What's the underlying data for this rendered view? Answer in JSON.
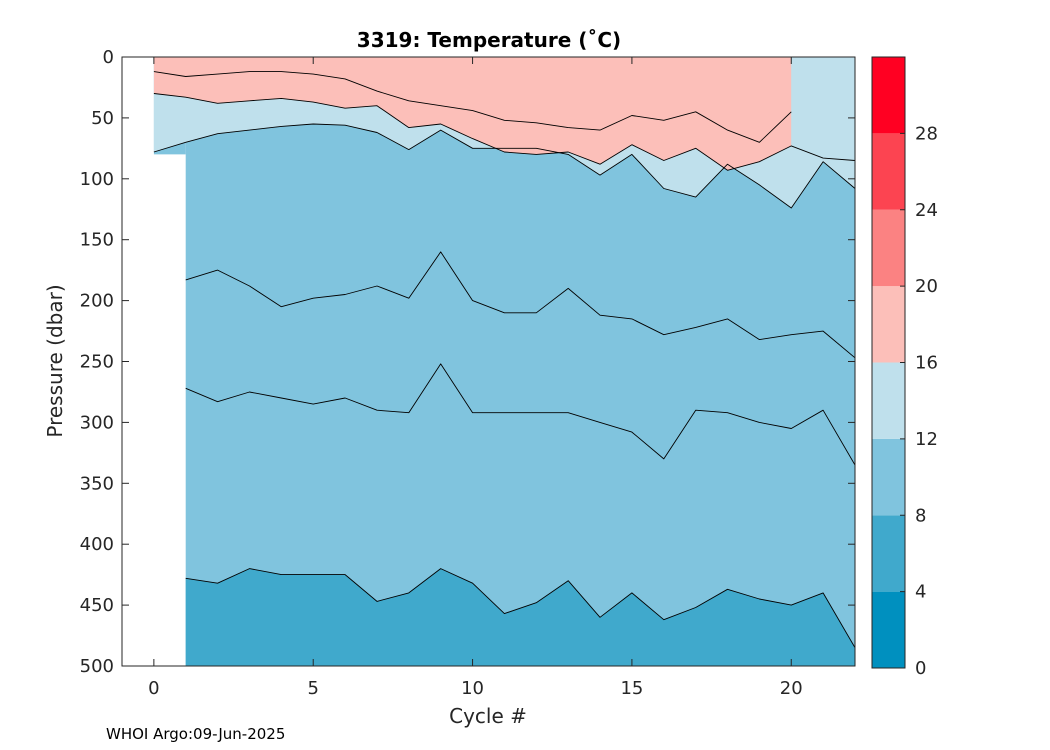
{
  "chart_data": {
    "type": "contour",
    "title": "3319:  Temperature (˚C)",
    "xlabel": "Cycle #",
    "ylabel": "Pressure (dbar)",
    "xlim": [
      -1,
      22
    ],
    "ylim": [
      0,
      500
    ],
    "y_reversed": true,
    "x_ticks": [
      0,
      5,
      10,
      15,
      20
    ],
    "y_ticks": [
      0,
      50,
      100,
      150,
      200,
      250,
      300,
      350,
      400,
      450,
      500
    ],
    "colorbar": {
      "ticks": [
        0,
        4,
        8,
        12,
        16,
        20,
        24,
        28
      ],
      "levels": [
        0,
        4,
        8,
        12,
        16,
        20,
        24,
        28,
        32
      ],
      "colors": [
        "#0090bf",
        "#40a9cc",
        "#80c4de",
        "#bfe0ec",
        "#fcbfb9",
        "#fb8282",
        "#fc4451",
        "#ff0022"
      ]
    },
    "isotherms": [
      {
        "level": 8,
        "x": [
          1,
          2,
          3,
          4,
          5,
          6,
          7,
          8,
          9,
          10,
          11,
          12,
          13,
          14,
          15,
          16,
          17,
          18,
          19,
          20,
          21,
          22
        ],
        "y": [
          428,
          432,
          420,
          425,
          425,
          425,
          447,
          440,
          420,
          432,
          457,
          448,
          430,
          460,
          440,
          462,
          452,
          437,
          445,
          450,
          440,
          485
        ]
      },
      {
        "level": 12,
        "x": [
          0,
          1,
          2,
          3,
          4,
          5,
          6,
          7,
          8,
          9,
          10,
          11,
          12,
          13,
          14,
          15,
          16,
          17,
          18,
          19,
          20,
          21,
          22
        ],
        "y": [
          78,
          70,
          63,
          60,
          57,
          55,
          56,
          62,
          76,
          60,
          75,
          75,
          75,
          80,
          97,
          80,
          108,
          115,
          88,
          105,
          124,
          86,
          108
        ]
      },
      {
        "level": 12,
        "x": [
          1,
          2,
          3,
          4,
          5,
          6,
          7,
          8,
          9,
          10,
          11,
          12,
          13,
          14,
          15,
          16,
          17,
          18,
          19,
          20,
          21,
          22
        ],
        "y": [
          183,
          175,
          188,
          205,
          198,
          195,
          188,
          198,
          160,
          200,
          210,
          210,
          190,
          212,
          215,
          228,
          222,
          215,
          232,
          228,
          225,
          247
        ]
      },
      {
        "level": 12,
        "x": [
          1,
          2,
          3,
          4,
          5,
          6,
          7,
          8,
          9,
          10,
          11,
          12,
          13,
          14,
          15,
          16,
          17,
          18,
          19,
          20,
          21,
          22
        ],
        "y": [
          272,
          283,
          275,
          280,
          285,
          280,
          290,
          292,
          252,
          292,
          292,
          292,
          292,
          300,
          308,
          330,
          290,
          292,
          300,
          305,
          290,
          335
        ]
      },
      {
        "level": 16,
        "x": [
          0,
          1,
          2,
          3,
          4,
          5,
          6,
          7,
          8,
          9,
          10,
          11,
          12,
          13,
          14,
          15,
          16,
          17,
          18,
          19,
          20,
          21,
          22
        ],
        "y": [
          30,
          33,
          38,
          36,
          34,
          37,
          42,
          40,
          58,
          55,
          67,
          78,
          80,
          78,
          88,
          72,
          85,
          75,
          93,
          86,
          73,
          83,
          85
        ]
      },
      {
        "level": 20,
        "x": [
          0,
          1,
          2,
          3,
          4,
          5,
          6,
          7,
          8,
          9,
          10,
          11,
          12,
          13,
          14,
          15,
          16,
          17,
          18,
          19,
          20
        ],
        "y": [
          12,
          16,
          14,
          12,
          12,
          14,
          18,
          28,
          36,
          40,
          44,
          52,
          54,
          58,
          60,
          48,
          52,
          45,
          60,
          70,
          45
        ]
      }
    ]
  },
  "footer": "WHOI Argo:09-Jun-2025"
}
